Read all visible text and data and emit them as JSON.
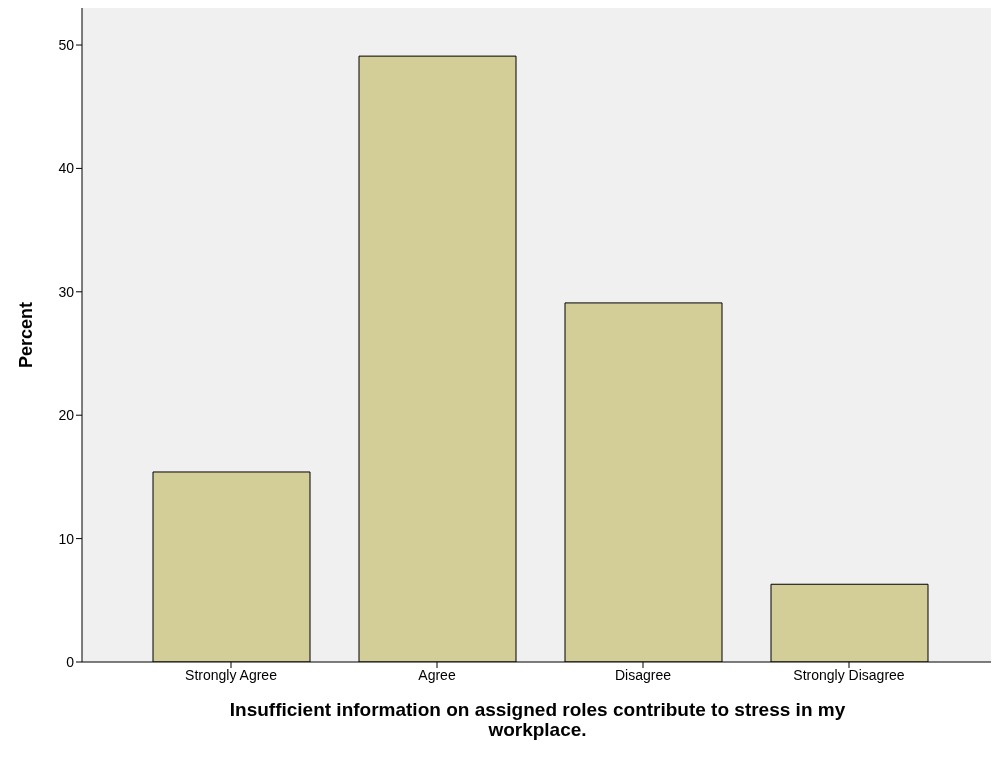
{
  "chart_data": {
    "type": "bar",
    "xlabel": "Insufficient information on assigned roles contribute to stress in my workplace.",
    "ylabel": "Percent",
    "categories": [
      "Strongly Agree",
      "Agree",
      "Disagree",
      "Strongly Disagree"
    ],
    "values": [
      15.4,
      49.1,
      29.1,
      6.3
    ],
    "color": "#d3ce97",
    "ylim": [
      0,
      53
    ],
    "yticks": [
      0,
      10,
      20,
      30,
      40,
      50
    ],
    "grid": false,
    "legend": false
  }
}
